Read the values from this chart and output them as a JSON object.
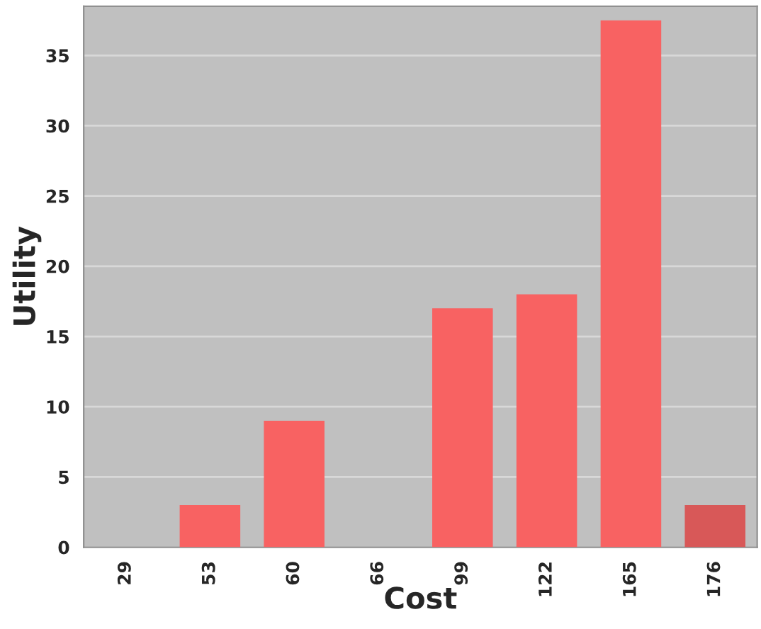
{
  "chart_data": {
    "type": "bar",
    "xlabel": "Cost",
    "ylabel": "Utility",
    "categories": [
      "29",
      "53",
      "60",
      "66",
      "99",
      "122",
      "165",
      "176"
    ],
    "values": [
      0,
      3,
      9,
      0,
      17,
      18,
      37.5,
      3
    ],
    "colors": [
      "#f86262",
      "#f86262",
      "#f86262",
      "#f86262",
      "#f86262",
      "#f86262",
      "#f86262",
      "#d85858"
    ],
    "ylim": [
      0,
      38.5
    ],
    "yticks": [
      0,
      5,
      10,
      15,
      20,
      25,
      30,
      35
    ],
    "grid": "y"
  }
}
